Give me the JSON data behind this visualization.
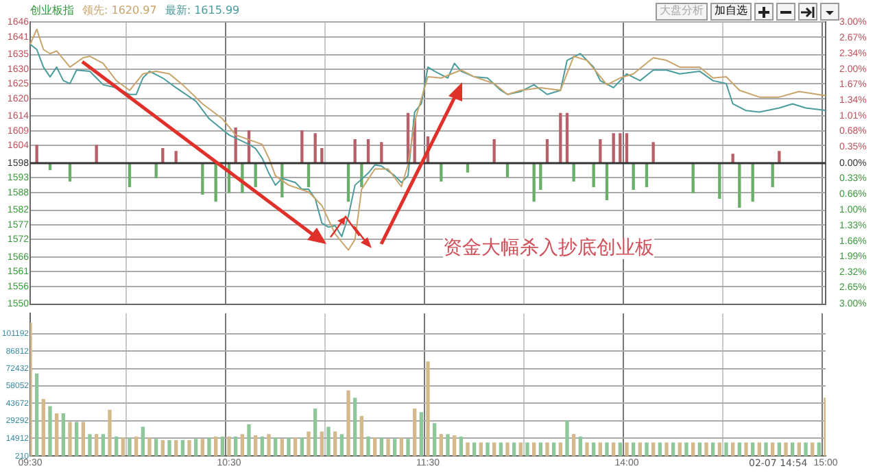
{
  "chart_data": [
    {
      "type": "line",
      "title": "创业板指",
      "categories": [
        null,
        null,
        null,
        null,
        null,
        null,
        null,
        null,
        null,
        null,
        null,
        null,
        null,
        null,
        null,
        null,
        null,
        null,
        null,
        null,
        null,
        null,
        null,
        null,
        null,
        null,
        null,
        null,
        null,
        null,
        null,
        null,
        null,
        null,
        null,
        null,
        null,
        null,
        null,
        null,
        null,
        null,
        null,
        null,
        null,
        null,
        null,
        null,
        null,
        null,
        null,
        null,
        null,
        null,
        null,
        null,
        null,
        null,
        null,
        null,
        null,
        null,
        null,
        null,
        null,
        null,
        null,
        null,
        null,
        null,
        null,
        null,
        null,
        null,
        null,
        null,
        null,
        null,
        null,
        null,
        null,
        null,
        null,
        null,
        null,
        null,
        null,
        null,
        null,
        null,
        null,
        null,
        null,
        null,
        null,
        null,
        null,
        null,
        null,
        null,
        null,
        null,
        null,
        null,
        null,
        null,
        null,
        null,
        null,
        null,
        null,
        null,
        null,
        null,
        null,
        null,
        null,
        null,
        null,
        null,
        null
      ],
      "tick_labels": "y",
      "series": [
        {
          "name": "领先: 1620.97",
          "color": "#c8a46a",
          "values": [
            1638.5,
            1643.6,
            1636.7,
            1635.3,
            1636.2,
            null,
            1630.7,
            null,
            1633.9,
            1634.4,
            null,
            1632.0,
            null,
            1626.1,
            null,
            1622.8,
            null,
            1628.4,
            null,
            1629.3,
            null,
            1628.4,
            null,
            1624.7,
            null,
            null,
            1618.2,
            null,
            null,
            1613.1,
            null,
            1607.6,
            null,
            null,
            null,
            1604.4,
            1599.7,
            1593.7,
            null,
            1590.5,
            null,
            null,
            1588.2,
            null,
            1583.6,
            null,
            1573.9,
            null,
            1568.4,
            1572.0,
            1589.1,
            null,
            1596.0,
            null,
            1596.0,
            null,
            1590.0,
            1597.4,
            1612.2,
            null,
            1627.4,
            null,
            1627.0,
            null,
            null,
            1629.7,
            null,
            1627.4,
            null,
            null,
            1625.1,
            null,
            1621.4,
            null,
            1622.8,
            null,
            null,
            1623.7,
            null,
            null,
            1622.8,
            null,
            1634.4,
            null,
            1633.0,
            null,
            null,
            1624.7,
            null,
            1627.0,
            null,
            1628.4,
            null,
            null,
            1633.9,
            null,
            1633.0,
            null,
            1630.7,
            null,
            null,
            1630.7,
            null,
            1627.0,
            null,
            1627.4,
            null,
            1622.8,
            null,
            null,
            1620.5,
            null,
            null,
            1620.5,
            null,
            null,
            1622.4,
            null,
            null,
            null,
            1621.0
          ]
        },
        {
          "name": "最新: 1615.99",
          "color": "#4a9c9c",
          "values": [
            1638.5,
            1636.7,
            1630.7,
            1627.4,
            1630.7,
            1626.1,
            1625.1,
            1629.7,
            null,
            1629.3,
            1627.0,
            1624.7,
            null,
            1623.7,
            null,
            1621.4,
            1621.4,
            1627.0,
            1629.3,
            null,
            1627.0,
            null,
            1623.7,
            null,
            null,
            1619.1,
            null,
            1613.1,
            null,
            null,
            1607.6,
            null,
            null,
            1604.4,
            1603.0,
            1599.7,
            1594.6,
            1590.5,
            1592.8,
            null,
            1591.4,
            1589.1,
            1589.1,
            1585.9,
            1577.6,
            1576.2,
            1576.7,
            1573.0,
            1579.9,
            1590.5,
            null,
            1594.6,
            1597.4,
            1597.0,
            null,
            1593.7,
            1591.4,
            1593.7,
            1615.4,
            1618.2,
            1630.7,
            1629.3,
            null,
            1627.0,
            1632.0,
            1629.3,
            null,
            1627.4,
            null,
            1627.0,
            null,
            1622.8,
            1621.4,
            null,
            1622.4,
            null,
            1624.7,
            null,
            1621.4,
            null,
            1622.8,
            1633.0,
            null,
            1635.3,
            null,
            1630.7,
            1626.1,
            null,
            1623.7,
            null,
            1628.4,
            null,
            1626.1,
            null,
            1629.7,
            null,
            1629.7,
            null,
            1628.4,
            null,
            null,
            1629.3,
            null,
            1626.1,
            null,
            1625.1,
            1618.2,
            null,
            1615.9,
            null,
            1615.4,
            null,
            null,
            1616.8,
            null,
            1618.2,
            null,
            1616.8,
            null,
            null,
            1616.0
          ]
        },
        {
          "type": "bar",
          "axis": "y2",
          "color": "#b8606a",
          "values": [
            null,
            0.38,
            null,
            null,
            null,
            null,
            null,
            null,
            null,
            null,
            0.38,
            null,
            null,
            null,
            null,
            null,
            null,
            null,
            null,
            null,
            0.31,
            null,
            0.25,
            null,
            null,
            null,
            null,
            null,
            null,
            null,
            null,
            0.75,
            null,
            0.69,
            null,
            null,
            null,
            null,
            null,
            null,
            null,
            0.69,
            null,
            0.63,
            0.31,
            null,
            null,
            null,
            null,
            0.5,
            null,
            0.5,
            null,
            0.44,
            null,
            null,
            null,
            1.06,
            0.94,
            null,
            0.56,
            null,
            null,
            null,
            null,
            null,
            null,
            null,
            null,
            null,
            0.5,
            null,
            null,
            null,
            null,
            null,
            null,
            null,
            0.5,
            null,
            1.06,
            1.06,
            null,
            null,
            null,
            null,
            0.5,
            null,
            0.63,
            0.63,
            0.63,
            null,
            null,
            null,
            0.44,
            null,
            null,
            null,
            null,
            null,
            null,
            null,
            null,
            null,
            null,
            null,
            0.19,
            null,
            null,
            null,
            null,
            null,
            null,
            0.25,
            null,
            null,
            null,
            null,
            null,
            null,
            null
          ]
        },
        {
          "type": "bar",
          "axis": "y2",
          "color": "#6aae6a",
          "values": [
            null,
            null,
            null,
            -0.14,
            null,
            null,
            -0.38,
            null,
            null,
            null,
            null,
            null,
            null,
            null,
            null,
            -0.5,
            null,
            null,
            null,
            -0.31,
            null,
            null,
            null,
            null,
            null,
            null,
            -0.66,
            null,
            -0.81,
            null,
            -0.63,
            null,
            -0.63,
            null,
            -0.5,
            null,
            null,
            null,
            -0.72,
            null,
            null,
            null,
            -0.5,
            null,
            null,
            null,
            null,
            null,
            -0.81,
            null,
            -0.5,
            null,
            null,
            null,
            null,
            null,
            null,
            null,
            null,
            null,
            null,
            null,
            -0.38,
            null,
            null,
            null,
            -0.19,
            null,
            null,
            null,
            null,
            null,
            -0.29,
            null,
            null,
            null,
            -0.81,
            -0.56,
            null,
            null,
            null,
            null,
            -0.38,
            null,
            null,
            -0.5,
            null,
            -0.78,
            null,
            null,
            null,
            -0.56,
            null,
            -0.5,
            null,
            null,
            null,
            null,
            null,
            null,
            -0.63,
            null,
            null,
            null,
            -0.75,
            null,
            null,
            -0.94,
            null,
            -0.81,
            null,
            null,
            -0.5,
            null,
            null,
            null,
            null,
            null,
            null,
            null,
            null
          ]
        }
      ],
      "ylim": [
        1550,
        1646
      ],
      "yticks": [
        1646,
        1641,
        1635,
        1630,
        1625,
        1620,
        1614,
        1609,
        1604,
        1598,
        1593,
        1588,
        1582,
        1577,
        1572,
        1566,
        1561,
        1556,
        1550
      ],
      "y2lim": [
        -3,
        3
      ],
      "y2ticks": [
        {
          "value": 3,
          "label": "3.00%"
        },
        {
          "value": 2.67,
          "label": "2.67%"
        },
        {
          "value": 2.34,
          "label": "2.34%"
        },
        {
          "value": 2,
          "label": "2.00%"
        },
        {
          "value": 1.67,
          "label": "1.67%"
        },
        {
          "value": 1.34,
          "label": "1.34%"
        },
        {
          "value": 1.01,
          "label": "1.01%"
        },
        {
          "value": 0.68,
          "label": "0.68%"
        },
        {
          "value": 0.35,
          "label": "0.35%"
        },
        {
          "value": 0,
          "label": "0.00%"
        },
        {
          "value": -0.33,
          "label": "0.33%"
        },
        {
          "value": -0.66,
          "label": "0.66%"
        },
        {
          "value": -1,
          "label": "1.00%"
        },
        {
          "value": -1.33,
          "label": "1.33%"
        },
        {
          "value": -1.66,
          "label": "1.66%"
        },
        {
          "value": -1.99,
          "label": "1.99%"
        },
        {
          "value": -2.32,
          "label": "2.32%"
        },
        {
          "value": -2.65,
          "label": "2.65%"
        },
        {
          "value": -3,
          "label": "3.00%"
        }
      ],
      "ref_lines": [
        {
          "axis": "y2",
          "value": 0,
          "color": "#333333"
        }
      ],
      "grid": true,
      "marker": "none",
      "line_style": "solid",
      "annotations": [
        "大盘分析",
        "加自选",
        "资金大幅杀入抄底创业板"
      ]
    },
    {
      "type": "bar",
      "categories": [
        "09:30",
        null,
        null,
        null,
        null,
        null,
        null,
        null,
        null,
        null,
        null,
        null,
        null,
        null,
        null,
        null,
        null,
        null,
        null,
        null,
        null,
        null,
        null,
        null,
        null,
        null,
        null,
        null,
        null,
        null,
        "10:30",
        null,
        null,
        null,
        null,
        null,
        null,
        null,
        null,
        null,
        null,
        null,
        null,
        null,
        null,
        null,
        null,
        null,
        null,
        null,
        null,
        null,
        null,
        null,
        null,
        null,
        null,
        null,
        null,
        null,
        "11:30",
        null,
        null,
        null,
        null,
        null,
        null,
        null,
        null,
        null,
        null,
        null,
        null,
        null,
        null,
        null,
        null,
        null,
        null,
        null,
        null,
        null,
        null,
        null,
        null,
        null,
        null,
        null,
        null,
        null,
        "14:00",
        null,
        null,
        null,
        null,
        null,
        null,
        null,
        null,
        null,
        null,
        null,
        null,
        null,
        null,
        null,
        null,
        null,
        null,
        null,
        null,
        null,
        null,
        null,
        null,
        null,
        null,
        null,
        null,
        null,
        "15:00"
      ],
      "values": [
        110000,
        68000,
        47000,
        41000,
        35000,
        35000,
        28000,
        28000,
        28000,
        18000,
        18000,
        18000,
        38000,
        16000,
        15000,
        15000,
        16000,
        24000,
        15000,
        14000,
        13000,
        13000,
        13000,
        13000,
        13000,
        14000,
        14000,
        15000,
        16000,
        16000,
        16000,
        16000,
        18000,
        26000,
        17000,
        16000,
        18000,
        15000,
        14000,
        15000,
        15000,
        15000,
        20000,
        39000,
        20000,
        24000,
        20000,
        18000,
        54000,
        48000,
        33000,
        16000,
        15000,
        15000,
        14000,
        14000,
        15000,
        14000,
        39000,
        36000,
        78000,
        27000,
        18000,
        18000,
        17000,
        16000,
        11000,
        11000,
        11000,
        11000,
        11000,
        11000,
        11000,
        11000,
        11000,
        11000,
        11000,
        11000,
        11000,
        11000,
        11000,
        29000,
        18000,
        16000,
        11000,
        11000,
        11000,
        11000,
        11000,
        11000,
        11000,
        11000,
        11000,
        11000,
        11000,
        11000,
        11000,
        11000,
        11000,
        11000,
        11000,
        11000,
        11000,
        11000,
        11000,
        11000,
        11000,
        11000,
        11000,
        11000,
        11000,
        11000,
        11000,
        11000,
        11000,
        11000,
        11000,
        11000,
        11000,
        11000,
        48000
      ],
      "colors": [
        "#d4b98c",
        "#8ec89a",
        "#d4b98c",
        "#8ec89a",
        "#d4b98c",
        "#8ec89a",
        "#d4b98c",
        "#8ec89a",
        "#d4b98c",
        "#8ec89a",
        "#d4b98c",
        "#8ec89a",
        "#d4b98c",
        "#8ec89a",
        "#d4b98c",
        "#8ec89a",
        "#d4b98c",
        "#8ec89a",
        "#d4b98c",
        "#8ec89a",
        "#d4b98c",
        "#8ec89a",
        "#d4b98c",
        "#8ec89a",
        "#d4b98c",
        "#8ec89a",
        "#d4b98c",
        "#8ec89a",
        "#d4b98c",
        "#8ec89a",
        "#d4b98c",
        "#8ec89a",
        "#d4b98c",
        "#8ec89a",
        "#d4b98c",
        "#8ec89a",
        "#d4b98c",
        "#8ec89a",
        "#d4b98c",
        "#8ec89a",
        "#d4b98c",
        "#8ec89a",
        "#d4b98c",
        "#8ec89a",
        "#d4b98c",
        "#8ec89a",
        "#d4b98c",
        "#8ec89a",
        "#d4b98c",
        "#8ec89a",
        "#d4b98c",
        "#8ec89a",
        "#d4b98c",
        "#8ec89a",
        "#d4b98c",
        "#8ec89a",
        "#d4b98c",
        "#8ec89a",
        "#d4b98c",
        "#8ec89a",
        "#d4b98c",
        "#8ec89a",
        "#d4b98c",
        "#8ec89a",
        "#d4b98c",
        "#8ec89a",
        "#d4b98c",
        "#8ec89a",
        "#d4b98c",
        "#8ec89a",
        "#d4b98c",
        "#8ec89a",
        "#d4b98c",
        "#8ec89a",
        "#d4b98c",
        "#8ec89a",
        "#d4b98c",
        "#8ec89a",
        "#d4b98c",
        "#8ec89a",
        "#d4b98c",
        "#8ec89a",
        "#d4b98c",
        "#8ec89a",
        "#d4b98c",
        "#8ec89a",
        "#d4b98c",
        "#8ec89a",
        "#d4b98c",
        "#8ec89a",
        "#d4b98c",
        "#8ec89a",
        "#d4b98c",
        "#8ec89a",
        "#d4b98c",
        "#8ec89a",
        "#d4b98c",
        "#8ec89a",
        "#d4b98c",
        "#8ec89a",
        "#d4b98c",
        "#8ec89a",
        "#d4b98c",
        "#8ec89a",
        "#d4b98c",
        "#8ec89a",
        "#d4b98c",
        "#8ec89a",
        "#d4b98c",
        "#8ec89a",
        "#d4b98c",
        "#8ec89a",
        "#d4b98c",
        "#8ec89a",
        "#d4b98c",
        "#8ec89a",
        "#d4b98c",
        "#8ec89a",
        "#d4b98c",
        "#8ec89a",
        "#d4b98c"
      ],
      "ylim": [
        210,
        118000
      ],
      "yticks": [
        210,
        14912,
        29292,
        43672,
        58052,
        72432,
        86812,
        101192
      ],
      "grid": true,
      "annotations": [
        "02-07 14:54"
      ]
    }
  ]
}
